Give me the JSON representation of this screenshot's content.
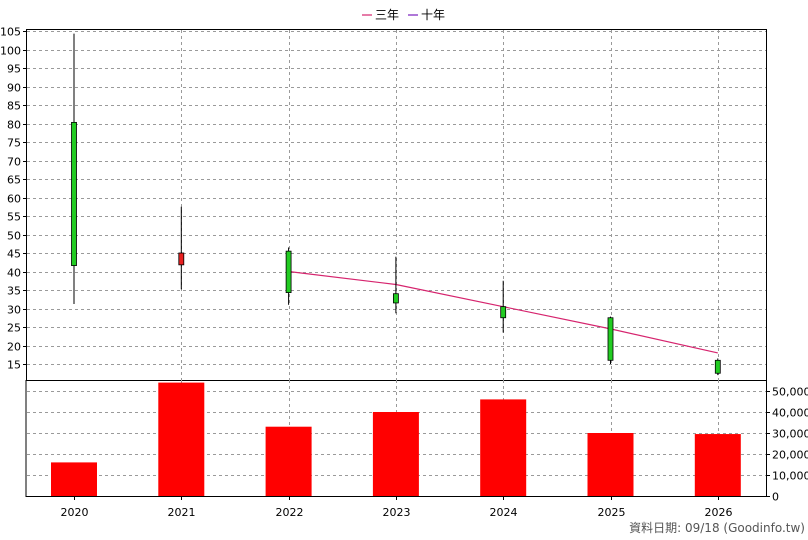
{
  "chart_data": [
    {
      "type": "candlestick",
      "legend": {
        "placement": "top-center",
        "items": [
          {
            "label": "三年",
            "color": "#d6246e"
          },
          {
            "label": "十年",
            "color": "#7a1fbf"
          }
        ]
      },
      "x": [
        "2020",
        "2021",
        "2022",
        "2023",
        "2024",
        "2025",
        "2026"
      ],
      "ylim": [
        10,
        106
      ],
      "yticks": [
        15,
        20,
        25,
        30,
        35,
        40,
        45,
        50,
        55,
        60,
        65,
        70,
        75,
        80,
        85,
        90,
        95,
        100,
        105
      ],
      "grid": true,
      "candles": [
        {
          "x": "2020",
          "open": 80.3,
          "close": 41.6,
          "high": 104.3,
          "low": 31.2,
          "color": "#22cc22"
        },
        {
          "x": "2021",
          "open": 41.8,
          "close": 45.0,
          "high": 57.5,
          "low": 35.2,
          "color": "#e82020"
        },
        {
          "x": "2022",
          "open": 45.5,
          "close": 34.3,
          "high": 46.5,
          "low": 31.0,
          "color": "#22cc22"
        },
        {
          "x": "2023",
          "open": 34.0,
          "close": 31.5,
          "high": 44.0,
          "low": 28.7,
          "color": "#22cc22"
        },
        {
          "x": "2024",
          "open": 30.5,
          "close": 27.5,
          "high": 37.5,
          "low": 23.5,
          "color": "#22cc22"
        },
        {
          "x": "2025",
          "open": 27.5,
          "close": 16.0,
          "high": 27.8,
          "low": 15.0,
          "color": "#22cc22"
        },
        {
          "x": "2026",
          "open": 16.0,
          "close": 12.5,
          "high": 16.5,
          "low": 12.0,
          "color": "#22cc22"
        }
      ],
      "series": [
        {
          "name": "三年",
          "color": "#d6246e",
          "points": [
            [
              "2022",
              40.0
            ],
            [
              "2023",
              36.5
            ],
            [
              "2024",
              30.5
            ],
            [
              "2025",
              24.5
            ],
            [
              "2026",
              18.0
            ]
          ]
        }
      ]
    },
    {
      "type": "bar",
      "categories": [
        "2020",
        "2021",
        "2022",
        "2023",
        "2024",
        "2025",
        "2026"
      ],
      "values": [
        16000,
        54000,
        33000,
        40000,
        46000,
        30000,
        29500
      ],
      "color": "#ff0000",
      "ylim": [
        0,
        55000
      ],
      "yticks": [
        "0",
        "10,000",
        "20,000",
        "30,000",
        "40,000",
        "50,000"
      ],
      "ytick_values": [
        0,
        10000,
        20000,
        30000,
        40000,
        50000
      ],
      "grid": true
    }
  ],
  "footer": {
    "date_text": "資料日期: 09/18  (Goodinfo.tw)"
  }
}
